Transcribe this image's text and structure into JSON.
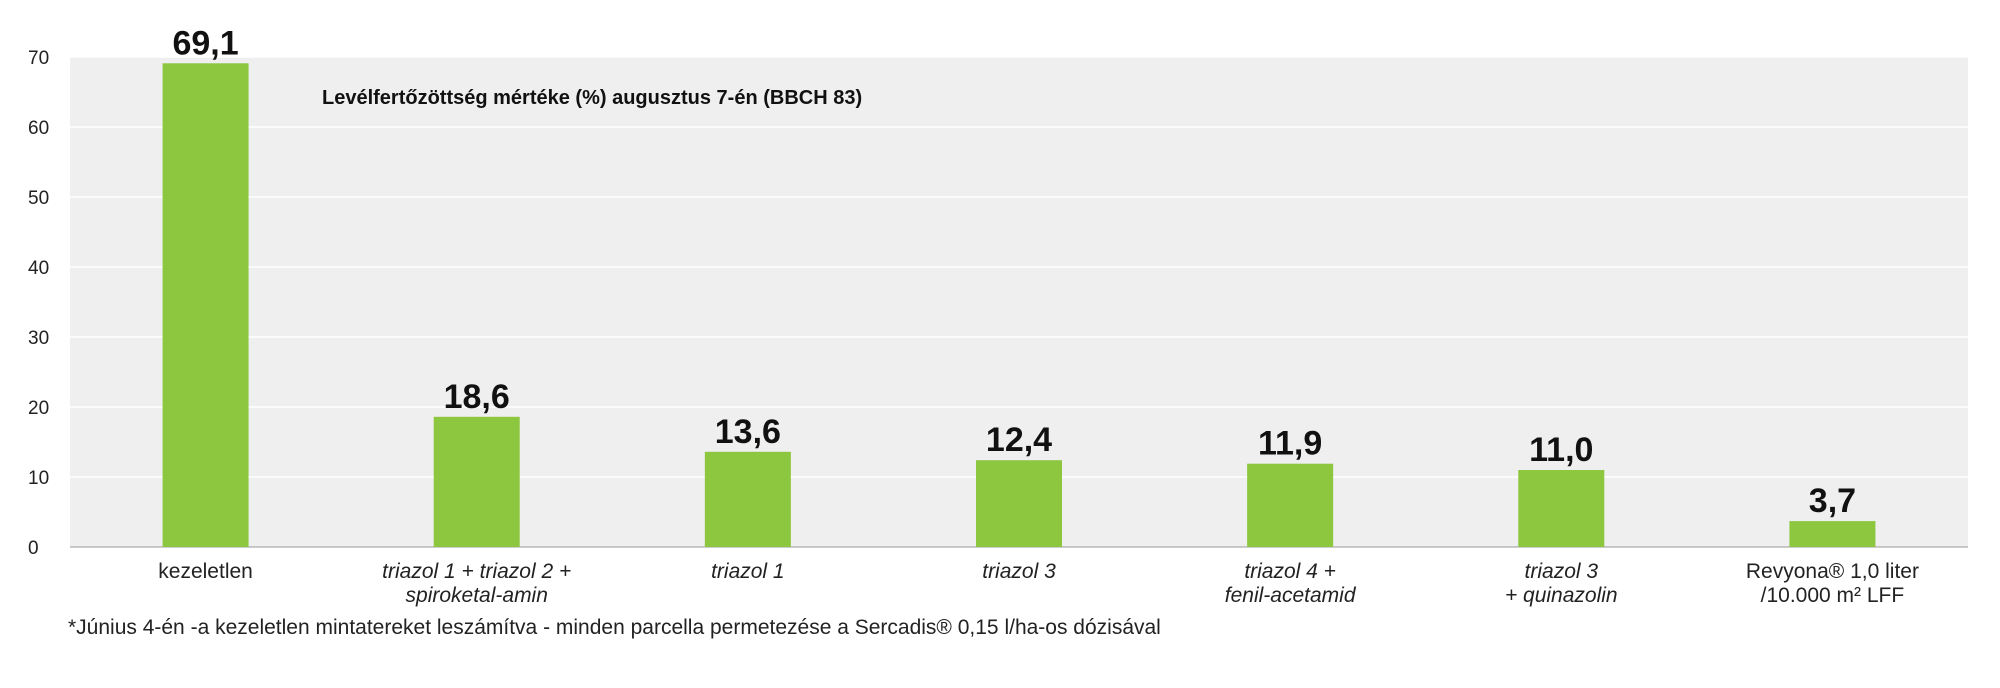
{
  "chart_data": {
    "type": "bar",
    "title": "Levélfertőzöttség mértéke (%) augusztus 7-én (BBCH 83)",
    "xlabel": "",
    "ylabel": "",
    "ylim": [
      0,
      70
    ],
    "yticks": [
      "0",
      "10",
      "20",
      "30",
      "40",
      "50",
      "60",
      "70"
    ],
    "grid": true,
    "bar_color": "#8dc63f",
    "plot_background": "#efefef",
    "categories": [
      {
        "lines": [
          "kezeletlen"
        ],
        "italic": false
      },
      {
        "lines": [
          "triazol 1 + triazol 2 +",
          "spiroketal-amin"
        ],
        "italic": true
      },
      {
        "lines": [
          "triazol 1"
        ],
        "italic": true
      },
      {
        "lines": [
          "triazol 3"
        ],
        "italic": true
      },
      {
        "lines": [
          "triazol 4 +",
          "fenil-acetamid"
        ],
        "italic": true
      },
      {
        "lines": [
          "triazol 3",
          "+ quinazolin"
        ],
        "italic": true
      },
      {
        "lines": [
          "Revyona® 1,0 liter",
          "/10.000 m² LFF"
        ],
        "italic": false
      }
    ],
    "values": [
      69.1,
      18.6,
      13.6,
      12.4,
      11.9,
      11.0,
      3.7
    ],
    "value_labels": [
      "69,1",
      "18,6",
      "13,6",
      "12,4",
      "11,9",
      "11,0",
      "3,7"
    ]
  },
  "footnote": "*Június 4-én -a kezeletlen mintatereket leszámítva - minden parcella permetezése a Sercadis® 0,15 l/ha-os dózisával"
}
